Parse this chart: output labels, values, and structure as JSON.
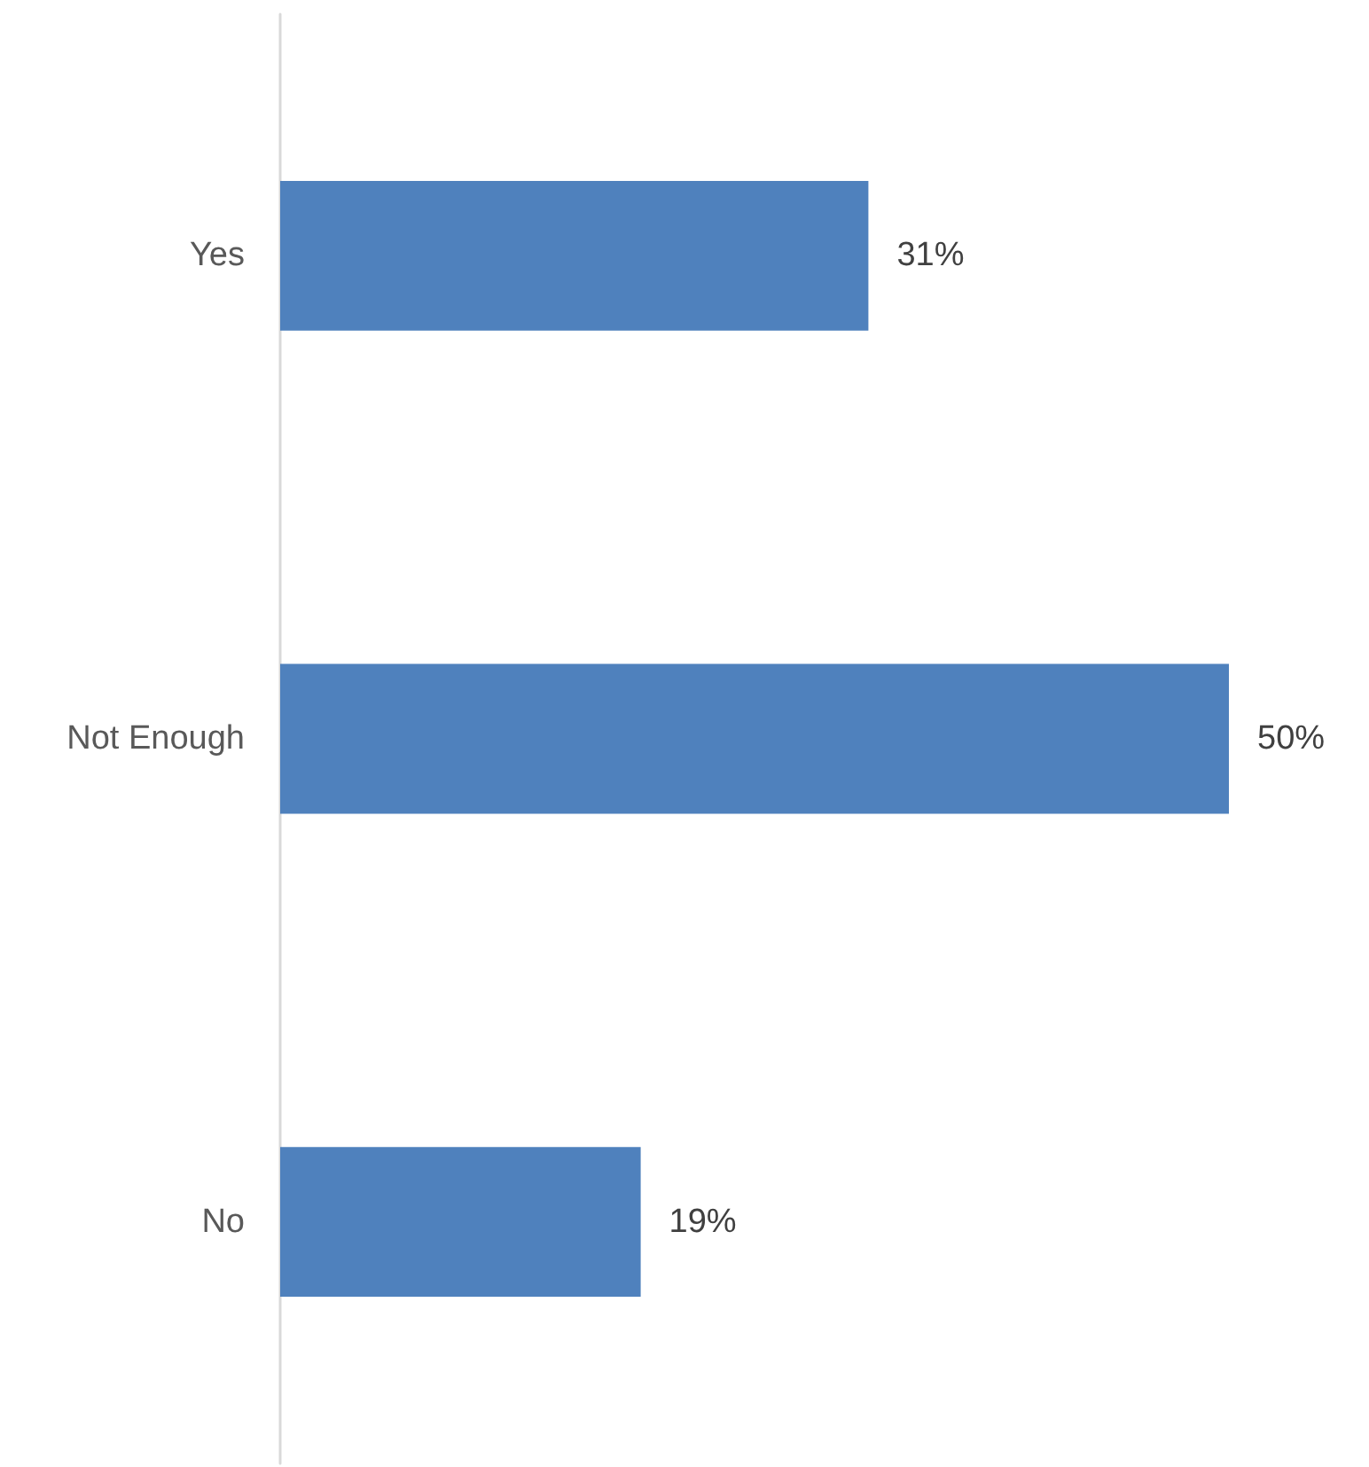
{
  "chart_data": {
    "type": "bar",
    "orientation": "horizontal",
    "categories": [
      "Yes",
      "Not Enough",
      "No"
    ],
    "values": [
      31,
      50,
      19
    ],
    "value_labels": [
      "31%",
      "50%",
      "19%"
    ],
    "color": "#4f81bd"
  }
}
